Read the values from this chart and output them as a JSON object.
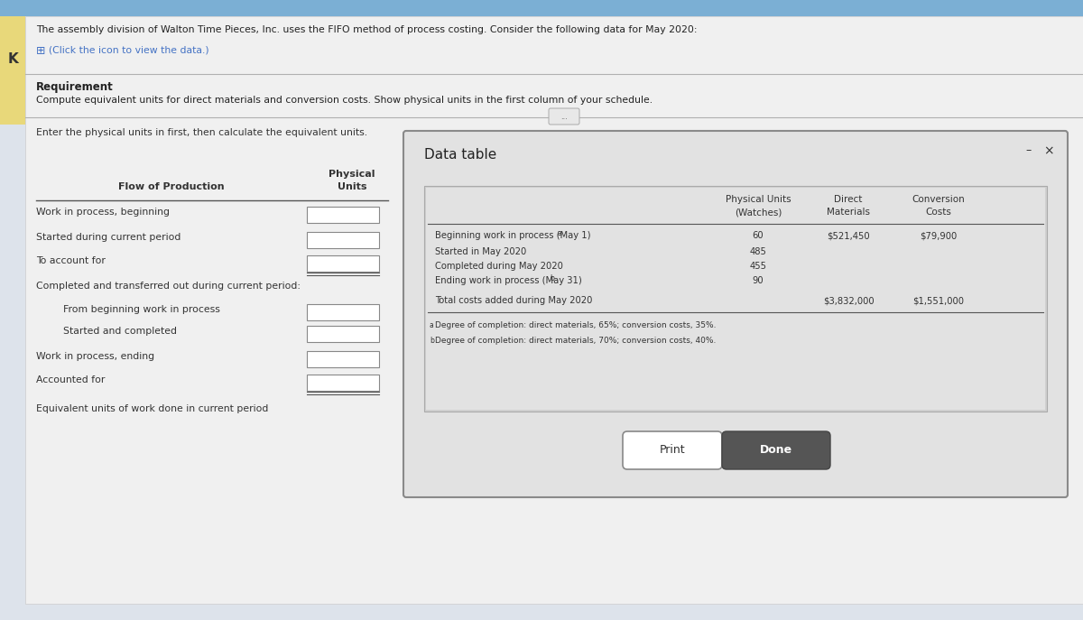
{
  "bg_top_color": "#7bafd4",
  "bg_main_color": "#e8edf2",
  "bg_left_panel": "#f5f5f5",
  "title_text": "The assembly division of Walton Time Pieces, Inc. uses the FIFO method of process costing. Consider the following data for May 2020:",
  "icon_text": "(Click the icon to view the data.)",
  "requirement_label": "Requirement",
  "requirement_text": "Compute equivalent units for direct materials and conversion costs. Show physical units in the first column of your schedule.",
  "instruction_text": "Enter the physical units in first, then calculate the equivalent units.",
  "col_header_line1": "Physical",
  "col_header_line2": "Units",
  "flow_label": "Flow of Production",
  "left_rows": [
    "Work in process, beginning",
    "Started during current period",
    "To account for",
    "Completed and transferred out during current period:",
    "From beginning work in process",
    "Started and completed",
    "Work in process, ending",
    "Accounted for",
    "Equivalent units of work done in current period"
  ],
  "indent": [
    false,
    false,
    false,
    false,
    true,
    true,
    false,
    false,
    false
  ],
  "has_double_line": [
    false,
    false,
    true,
    false,
    false,
    false,
    false,
    true,
    false
  ],
  "has_input_box": [
    true,
    true,
    true,
    false,
    true,
    true,
    true,
    true,
    false
  ],
  "dialog_title": "Data table",
  "dialog_bg": "#e4e4e4",
  "dialog_border": "#8a8a8a",
  "inner_table_bg": "#d0d0d0",
  "inner_table_content_bg": "#e0e0e0",
  "tbl_header1": [
    "",
    "Physical Units",
    "Direct",
    "Conversion"
  ],
  "tbl_header2": [
    "",
    "(Watches)",
    "Materials",
    "Costs"
  ],
  "tbl_rows": [
    [
      "Beginning work in process (May 1)",
      "a",
      "60",
      "$521,450",
      "$79,900"
    ],
    [
      "Started in May 2020",
      "",
      "485",
      "",
      ""
    ],
    [
      "Completed during May 2020",
      "",
      "455",
      "",
      ""
    ],
    [
      "Ending work in process (May 31)",
      "b",
      "90",
      "",
      ""
    ],
    [
      "Total costs added during May 2020",
      "",
      "",
      "$3,832,000",
      "$1,551,000"
    ]
  ],
  "footnote_a": "Degree of completion: direct materials, 65%; conversion costs, 35%.",
  "footnote_b": "Degree of completion: direct materials, 70%; conversion costs, 40%.",
  "print_btn": "Print",
  "done_btn": "Done",
  "three_dots": "...",
  "arrow_char": "K",
  "dot_char": "•"
}
